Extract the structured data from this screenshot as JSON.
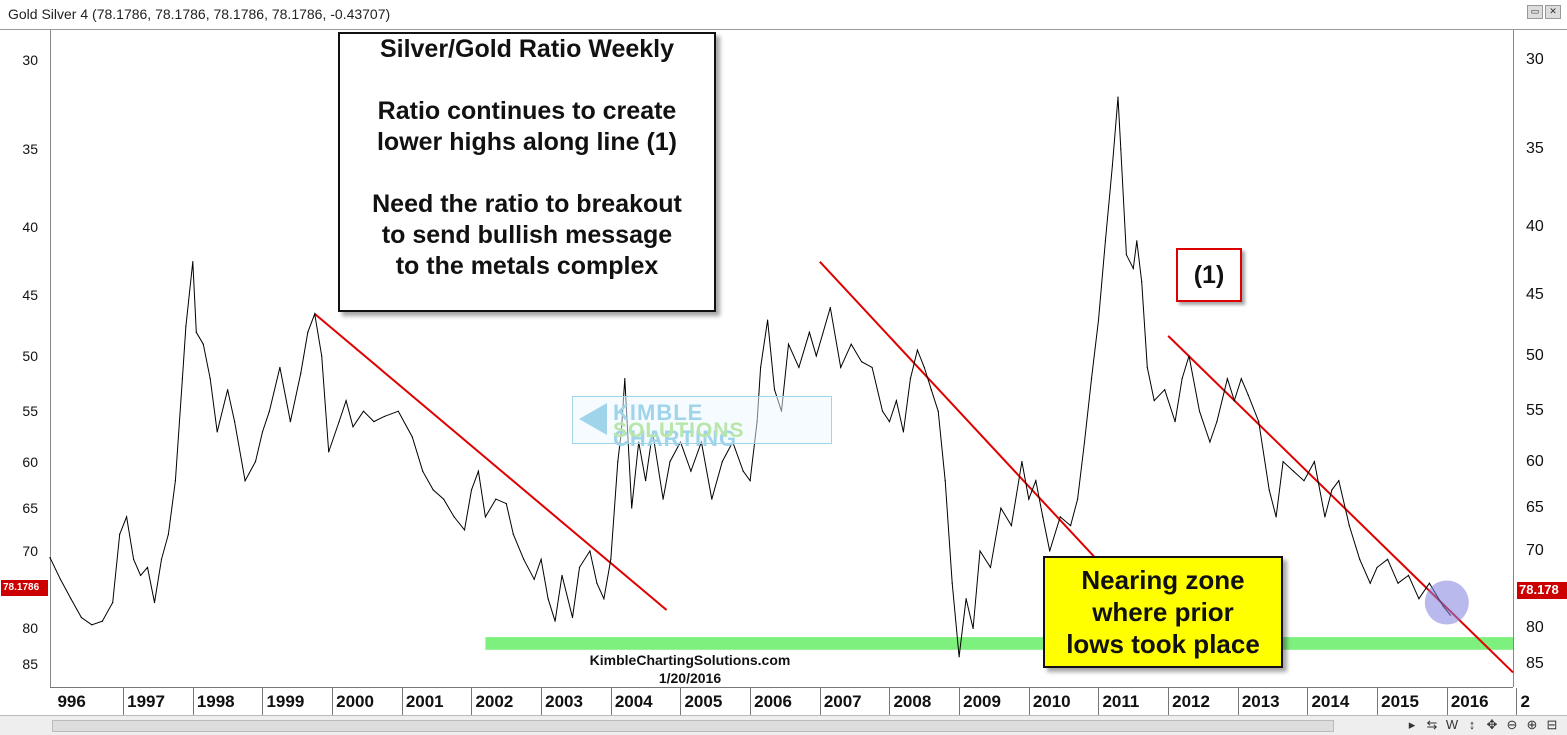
{
  "window": {
    "title": "Gold Silver 4 (78.1786, 78.1786, 78.1786, 78.1786, -0.43707)"
  },
  "annotations": {
    "info_lines": [
      "Silver/Gold Ratio Weekly",
      "",
      "Ratio continues to create",
      "lower highs along line (1)",
      "",
      "Need the ratio to breakout",
      "to send bullish message",
      "to the metals complex"
    ],
    "line_label": "(1)",
    "zone_lines": [
      "Nearing zone",
      "where prior",
      "lows took place"
    ],
    "credit": "KimbleChartingSolutions.com",
    "credit_date": "1/20/2016",
    "watermark_line1": "KIMBLE CHARTING",
    "watermark_line2": "SOLUTIONS"
  },
  "price_tags": {
    "left": "78.1786",
    "right": "78.178"
  },
  "toolbar": {
    "timeframe_label": "W"
  },
  "colors": {
    "line": "#000000",
    "trend": "#e00000",
    "zone": "#7ef07e",
    "highlight": "#8080e0",
    "label_box": "#ffff00",
    "price_tag": "#c00000"
  },
  "chart_data": {
    "type": "line",
    "title": "Gold Silver 4",
    "y_axis": {
      "inverted": true,
      "ticks": [
        30,
        35,
        40,
        45,
        50,
        55,
        60,
        65,
        70,
        75,
        80,
        85
      ],
      "range": [
        28.5,
        88.5
      ],
      "scale": "log"
    },
    "x_axis": {
      "ticks": [
        "996",
        "1997",
        "1998",
        "1999",
        "2000",
        "2001",
        "2002",
        "2003",
        "2004",
        "2005",
        "2006",
        "2007",
        "2008",
        "2009",
        "2010",
        "2011",
        "2012",
        "2013",
        "2014",
        "2015",
        "2016",
        "2"
      ],
      "range": [
        1995.95,
        2016.95
      ]
    },
    "series": [
      {
        "name": "Gold Silver 4",
        "points": [
          [
            1995.95,
            70.8
          ],
          [
            1996.1,
            73.5
          ],
          [
            1996.25,
            76
          ],
          [
            1996.4,
            78.5
          ],
          [
            1996.55,
            79.5
          ],
          [
            1996.7,
            79
          ],
          [
            1996.85,
            76.5
          ],
          [
            1996.95,
            68
          ],
          [
            1997.05,
            66
          ],
          [
            1997.15,
            71
          ],
          [
            1997.25,
            73
          ],
          [
            1997.35,
            72
          ],
          [
            1997.45,
            76.5
          ],
          [
            1997.55,
            71
          ],
          [
            1997.65,
            68
          ],
          [
            1997.75,
            62
          ],
          [
            1997.85,
            52
          ],
          [
            1997.9,
            47.5
          ],
          [
            1998.0,
            42.5
          ],
          [
            1998.05,
            48
          ],
          [
            1998.15,
            49
          ],
          [
            1998.25,
            52
          ],
          [
            1998.35,
            57
          ],
          [
            1998.5,
            53
          ],
          [
            1998.6,
            56
          ],
          [
            1998.75,
            62
          ],
          [
            1998.9,
            60
          ],
          [
            1999.0,
            57
          ],
          [
            1999.1,
            55
          ],
          [
            1999.25,
            51
          ],
          [
            1999.4,
            56
          ],
          [
            1999.55,
            51.5
          ],
          [
            1999.65,
            48
          ],
          [
            1999.75,
            46.5
          ],
          [
            1999.85,
            50
          ],
          [
            1999.95,
            59
          ],
          [
            2000.1,
            56
          ],
          [
            2000.2,
            54
          ],
          [
            2000.3,
            56.5
          ],
          [
            2000.45,
            55
          ],
          [
            2000.6,
            56
          ],
          [
            2000.75,
            55.5
          ],
          [
            2000.95,
            55
          ],
          [
            2001.15,
            57.5
          ],
          [
            2001.3,
            61
          ],
          [
            2001.45,
            63
          ],
          [
            2001.6,
            64
          ],
          [
            2001.75,
            66
          ],
          [
            2001.9,
            67.5
          ],
          [
            2002.0,
            63
          ],
          [
            2002.1,
            61
          ],
          [
            2002.2,
            66
          ],
          [
            2002.35,
            64
          ],
          [
            2002.5,
            64.5
          ],
          [
            2002.6,
            68
          ],
          [
            2002.75,
            71
          ],
          [
            2002.9,
            73.5
          ],
          [
            2003.0,
            71
          ],
          [
            2003.1,
            76
          ],
          [
            2003.2,
            79
          ],
          [
            2003.3,
            73
          ],
          [
            2003.45,
            78.5
          ],
          [
            2003.55,
            72
          ],
          [
            2003.7,
            70
          ],
          [
            2003.8,
            74
          ],
          [
            2003.9,
            76
          ],
          [
            2004.0,
            71
          ],
          [
            2004.1,
            60
          ],
          [
            2004.15,
            57
          ],
          [
            2004.2,
            52
          ],
          [
            2004.3,
            65
          ],
          [
            2004.4,
            58
          ],
          [
            2004.5,
            62
          ],
          [
            2004.6,
            57
          ],
          [
            2004.75,
            64
          ],
          [
            2004.85,
            60
          ],
          [
            2005.0,
            58
          ],
          [
            2005.15,
            61
          ],
          [
            2005.3,
            58
          ],
          [
            2005.45,
            64
          ],
          [
            2005.6,
            60
          ],
          [
            2005.75,
            58
          ],
          [
            2005.9,
            61
          ],
          [
            2006.0,
            62
          ],
          [
            2006.1,
            56
          ],
          [
            2006.15,
            51
          ],
          [
            2006.25,
            47
          ],
          [
            2006.35,
            53
          ],
          [
            2006.45,
            55
          ],
          [
            2006.55,
            49
          ],
          [
            2006.7,
            51
          ],
          [
            2006.85,
            48
          ],
          [
            2006.95,
            50
          ],
          [
            2007.15,
            46
          ],
          [
            2007.3,
            51
          ],
          [
            2007.45,
            49
          ],
          [
            2007.6,
            50.5
          ],
          [
            2007.75,
            51
          ],
          [
            2007.9,
            55
          ],
          [
            2008.0,
            56
          ],
          [
            2008.1,
            54
          ],
          [
            2008.2,
            57
          ],
          [
            2008.3,
            52
          ],
          [
            2008.4,
            49.5
          ],
          [
            2008.5,
            51
          ],
          [
            2008.6,
            53
          ],
          [
            2008.7,
            55
          ],
          [
            2008.8,
            62
          ],
          [
            2008.9,
            74
          ],
          [
            2009.0,
            84
          ],
          [
            2009.1,
            76
          ],
          [
            2009.2,
            80
          ],
          [
            2009.3,
            70
          ],
          [
            2009.45,
            72
          ],
          [
            2009.6,
            65
          ],
          [
            2009.75,
            67
          ],
          [
            2009.9,
            60
          ],
          [
            2010.0,
            64
          ],
          [
            2010.1,
            62
          ],
          [
            2010.2,
            66
          ],
          [
            2010.3,
            70
          ],
          [
            2010.45,
            66
          ],
          [
            2010.6,
            67
          ],
          [
            2010.7,
            64
          ],
          [
            2010.8,
            58
          ],
          [
            2010.9,
            52
          ],
          [
            2011.0,
            47
          ],
          [
            2011.1,
            41
          ],
          [
            2011.2,
            36
          ],
          [
            2011.28,
            32
          ],
          [
            2011.32,
            35
          ],
          [
            2011.4,
            42
          ],
          [
            2011.5,
            43
          ],
          [
            2011.55,
            41
          ],
          [
            2011.62,
            44
          ],
          [
            2011.7,
            51
          ],
          [
            2011.8,
            54
          ],
          [
            2011.95,
            53
          ],
          [
            2012.1,
            56
          ],
          [
            2012.2,
            52
          ],
          [
            2012.3,
            50
          ],
          [
            2012.45,
            55
          ],
          [
            2012.6,
            58
          ],
          [
            2012.7,
            56
          ],
          [
            2012.85,
            52
          ],
          [
            2012.95,
            54
          ],
          [
            2013.05,
            52
          ],
          [
            2013.15,
            53.5
          ],
          [
            2013.3,
            56
          ],
          [
            2013.45,
            63
          ],
          [
            2013.55,
            66
          ],
          [
            2013.65,
            60
          ],
          [
            2013.8,
            61
          ],
          [
            2013.95,
            62
          ],
          [
            2014.1,
            60
          ],
          [
            2014.25,
            66
          ],
          [
            2014.35,
            63
          ],
          [
            2014.45,
            62
          ],
          [
            2014.6,
            67
          ],
          [
            2014.75,
            71
          ],
          [
            2014.9,
            74
          ],
          [
            2015.0,
            72
          ],
          [
            2015.15,
            71
          ],
          [
            2015.3,
            74
          ],
          [
            2015.45,
            73
          ],
          [
            2015.6,
            76
          ],
          [
            2015.75,
            74
          ],
          [
            2015.85,
            75.5
          ],
          [
            2015.95,
            77
          ],
          [
            2016.05,
            78.18
          ]
        ]
      }
    ],
    "trendlines": [
      {
        "name": "trend-1999-2004",
        "from": [
          1999.75,
          46.5
        ],
        "to": [
          2004.8,
          77.5
        ]
      },
      {
        "name": "trend-2007-2010",
        "from": [
          2007.0,
          42.5
        ],
        "to": [
          2010.95,
          70.8
        ]
      },
      {
        "name": "trend-1-2012-2017",
        "from": [
          2012.0,
          48.3
        ],
        "to": [
          2016.95,
          86.3
        ]
      }
    ],
    "zone": {
      "y_from": 81.2,
      "y_to": 83.0,
      "x_from": 2002.2,
      "x_to": 2016.95
    },
    "highlight": {
      "x": 2016.0,
      "y": 76.5
    }
  }
}
